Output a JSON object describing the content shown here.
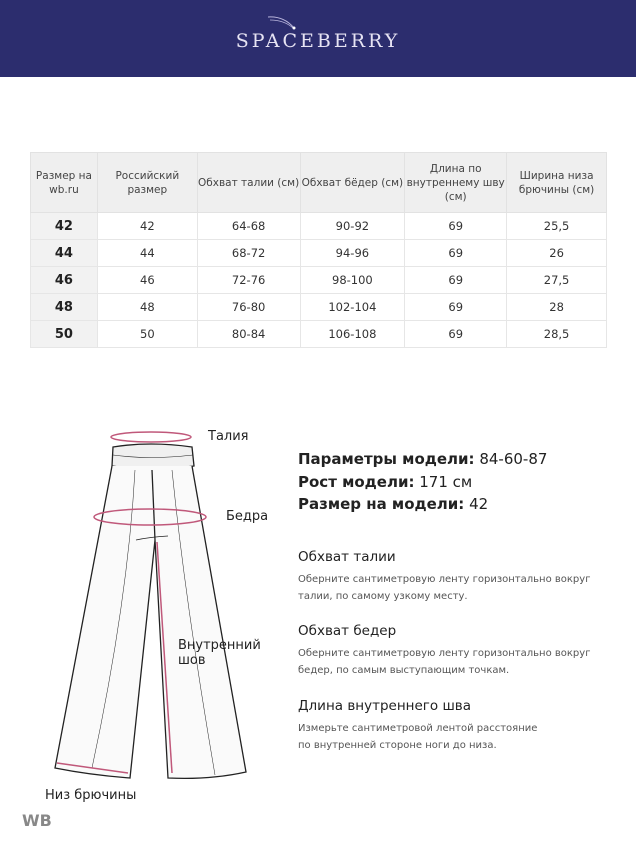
{
  "brand": {
    "name": "SPACEBERRY",
    "background": "#2c2d6e"
  },
  "table": {
    "headers": [
      "Размер на wb.ru",
      "Российский размер",
      "Обхват талии (см)",
      "Обхват бёдер (см)",
      "Длина по внутреннему шву (см)",
      "Ширина низа брючины (см)"
    ],
    "rows": [
      [
        "42",
        "42",
        "64-68",
        "90-92",
        "69",
        "25,5"
      ],
      [
        "44",
        "44",
        "68-72",
        "94-96",
        "69",
        "26"
      ],
      [
        "46",
        "46",
        "72-76",
        "98-100",
        "69",
        "27,5"
      ],
      [
        "48",
        "48",
        "76-80",
        "102-104",
        "69",
        "28"
      ],
      [
        "50",
        "50",
        "80-84",
        "106-108",
        "69",
        "28,5"
      ]
    ]
  },
  "diagram": {
    "waist": "Талия",
    "hips": "Бедра",
    "inseam": "Внутренний шов",
    "hem": "Низ брючины",
    "accent": "#c0587a"
  },
  "model": {
    "params_label": "Параметры модели:",
    "params_value": "84-60-87",
    "height_label": "Рост модели:",
    "height_value": "171 см",
    "size_label": "Размер на модели:",
    "size_value": "42"
  },
  "instructions": [
    {
      "title": "Обхват талии",
      "text": "Оберните сантиметровую ленту горизонтально вокруг талии, по самому узкому месту."
    },
    {
      "title": "Обхват бедер",
      "text": "Оберните сантиметровую ленту горизонтально вокруг бедер, по самым выступающим точкам."
    },
    {
      "title": "Длина внутреннего шва",
      "text": "Измерьте сантиметровой лентой расстояние по внутренней стороне ноги до низа."
    }
  ],
  "watermark": "WB"
}
